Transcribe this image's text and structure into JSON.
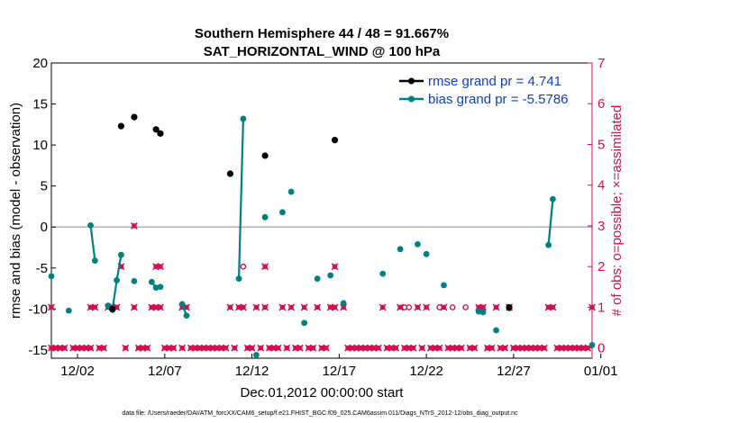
{
  "chart_data": {
    "type": "scatter",
    "title": [
      "Southern Hemisphere 44 / 48 = 91.667%",
      "SAT_HORIZONTAL_WIND @ 100 hPa"
    ],
    "xlabel": "Dec.01,2012 00:00:00 start",
    "ylabel_left": "rmse and bias (model - observation)",
    "ylabel_right": "# of obs: o=possible; ×=assimilated",
    "footer": "data file: /Users/raeder/DAI/ATM_forcXX/CAM6_setup/f.e21.FHIST_BGC.f09_025.CAM6assim.011/Diags_NTrS_2012-12/obs_diag_output.nc",
    "xlim": [
      0.5,
      31.5
    ],
    "ylim_left": [
      -16,
      20
    ],
    "ylim_right": [
      -0.25,
      7
    ],
    "x_ticks": [
      {
        "x": 2,
        "label": "12/02"
      },
      {
        "x": 7,
        "label": "12/07"
      },
      {
        "x": 12,
        "label": "12/12"
      },
      {
        "x": 17,
        "label": "12/17"
      },
      {
        "x": 22,
        "label": "12/22"
      },
      {
        "x": 27,
        "label": "12/27"
      },
      {
        "x": 32,
        "label": "01/01"
      }
    ],
    "y_ticks_left": [
      -15,
      -10,
      -5,
      0,
      5,
      10,
      15,
      20
    ],
    "y_ticks_right": [
      0,
      1,
      2,
      3,
      4,
      5,
      6,
      7
    ],
    "zero_line": 0,
    "legend": {
      "placement": "top-right",
      "entries": [
        {
          "key": "rmse",
          "label": "rmse grand pr = 4.741"
        },
        {
          "key": "bias",
          "label": "bias grand pr = -5.5786"
        }
      ]
    },
    "colors": {
      "rmse": "#000000",
      "bias": "#008080",
      "count": "#d01050",
      "legend_text": "#1040c0",
      "zero_line": "#b0b0b0"
    },
    "rmse_points": [
      [
        4.0,
        -10.0
      ],
      [
        4.5,
        12.3
      ],
      [
        5.25,
        13.4
      ],
      [
        6.5,
        11.9
      ],
      [
        6.75,
        11.4
      ],
      [
        10.75,
        6.5
      ],
      [
        12.75,
        8.7
      ],
      [
        16.75,
        10.6
      ],
      [
        26.75,
        -9.8
      ]
    ],
    "bias_segments": [
      [
        [
          0.5,
          -6.0
        ]
      ],
      [
        [
          1.5,
          -10.2
        ]
      ],
      [
        [
          2.75,
          0.2
        ],
        [
          3.0,
          -4.1
        ]
      ],
      [
        [
          3.75,
          -9.6
        ],
        [
          4.0,
          -10.1
        ],
        [
          4.25,
          -6.5
        ],
        [
          4.5,
          -3.4
        ]
      ],
      [
        [
          5.25,
          -6.6
        ]
      ],
      [
        [
          6.25,
          -6.7
        ],
        [
          6.5,
          -7.4
        ],
        [
          6.75,
          -7.3
        ]
      ],
      [
        [
          8.0,
          -9.4
        ],
        [
          8.25,
          -10.8
        ]
      ],
      [
        [
          10.75,
          6.5
        ]
      ],
      [
        [
          11.25,
          -6.3
        ],
        [
          11.5,
          13.2
        ]
      ],
      [
        [
          12.25,
          -15.6
        ]
      ],
      [
        [
          12.75,
          1.2
        ]
      ],
      [
        [
          13.75,
          1.8
        ]
      ],
      [
        [
          14.25,
          4.3
        ]
      ],
      [
        [
          15.0,
          -11.7
        ]
      ],
      [
        [
          15.75,
          -6.3
        ]
      ],
      [
        [
          16.5,
          -5.9
        ]
      ],
      [
        [
          17.25,
          -9.3
        ]
      ],
      [
        [
          19.5,
          -5.7
        ]
      ],
      [
        [
          20.5,
          -2.7
        ]
      ],
      [
        [
          21.5,
          -2.1
        ]
      ],
      [
        [
          22.0,
          -3.3
        ]
      ],
      [
        [
          23.0,
          -7.1
        ]
      ],
      [
        [
          25.0,
          -10.3
        ]
      ],
      [
        [
          25.25,
          -10.4
        ]
      ],
      [
        [
          26.0,
          -12.6
        ]
      ],
      [
        [
          26.75,
          -9.9
        ]
      ],
      [
        [
          29.0,
          -2.2
        ],
        [
          29.25,
          3.4
        ]
      ],
      [
        [
          31.5,
          -14.4
        ]
      ]
    ],
    "possible_counts": [
      [
        11.5,
        2
      ],
      [
        20.75,
        1
      ],
      [
        21.0,
        1
      ],
      [
        22.75,
        1
      ],
      [
        23.5,
        1
      ],
      [
        24.25,
        1
      ]
    ],
    "assimilated_counts": [
      [
        0.5,
        0
      ],
      [
        0.75,
        0
      ],
      [
        1.0,
        0
      ],
      [
        1.25,
        0
      ],
      [
        1.75,
        0
      ],
      [
        2.0,
        0
      ],
      [
        2.25,
        0
      ],
      [
        2.5,
        0
      ],
      [
        2.75,
        0
      ],
      [
        3.25,
        0
      ],
      [
        3.5,
        0
      ],
      [
        4.75,
        0
      ],
      [
        5.5,
        0
      ],
      [
        5.75,
        0
      ],
      [
        6.0,
        0
      ],
      [
        7.0,
        0
      ],
      [
        7.25,
        0
      ],
      [
        7.5,
        0
      ],
      [
        8.0,
        0
      ],
      [
        8.5,
        0
      ],
      [
        8.75,
        0
      ],
      [
        9.0,
        0
      ],
      [
        9.25,
        0
      ],
      [
        9.5,
        0
      ],
      [
        9.75,
        0
      ],
      [
        10.0,
        0
      ],
      [
        10.25,
        0
      ],
      [
        10.5,
        0
      ],
      [
        11.0,
        0
      ],
      [
        11.75,
        0
      ],
      [
        12.0,
        0
      ],
      [
        12.5,
        0
      ],
      [
        13.0,
        0
      ],
      [
        13.25,
        0
      ],
      [
        13.5,
        0
      ],
      [
        14.0,
        0
      ],
      [
        14.5,
        0
      ],
      [
        14.75,
        0
      ],
      [
        15.25,
        0
      ],
      [
        15.5,
        0
      ],
      [
        16.0,
        0
      ],
      [
        16.25,
        0
      ],
      [
        17.5,
        0
      ],
      [
        17.75,
        0
      ],
      [
        18.0,
        0
      ],
      [
        18.25,
        0
      ],
      [
        18.5,
        0
      ],
      [
        18.75,
        0
      ],
      [
        19.0,
        0
      ],
      [
        19.25,
        0
      ],
      [
        19.75,
        0
      ],
      [
        20.0,
        0
      ],
      [
        20.25,
        0
      ],
      [
        20.75,
        0
      ],
      [
        21.0,
        0
      ],
      [
        21.25,
        0
      ],
      [
        21.75,
        0
      ],
      [
        22.25,
        0
      ],
      [
        22.5,
        0
      ],
      [
        22.75,
        0
      ],
      [
        23.25,
        0
      ],
      [
        23.5,
        0
      ],
      [
        23.75,
        0
      ],
      [
        24.0,
        0
      ],
      [
        24.5,
        0
      ],
      [
        24.75,
        0
      ],
      [
        25.5,
        0
      ],
      [
        25.75,
        0
      ],
      [
        26.25,
        0
      ],
      [
        26.5,
        0
      ],
      [
        27.0,
        0
      ],
      [
        27.25,
        0
      ],
      [
        27.5,
        0
      ],
      [
        27.75,
        0
      ],
      [
        28.0,
        0
      ],
      [
        28.25,
        0
      ],
      [
        28.5,
        0
      ],
      [
        28.75,
        0
      ],
      [
        29.5,
        0
      ],
      [
        29.75,
        0
      ],
      [
        30.0,
        0
      ],
      [
        30.25,
        0
      ],
      [
        30.5,
        0
      ],
      [
        30.75,
        0
      ],
      [
        31.0,
        0
      ],
      [
        31.25,
        0
      ],
      [
        0.5,
        1
      ],
      [
        2.75,
        1
      ],
      [
        3.0,
        1
      ],
      [
        3.75,
        1
      ],
      [
        4.0,
        1
      ],
      [
        4.25,
        1
      ],
      [
        5.25,
        1
      ],
      [
        6.25,
        1
      ],
      [
        6.5,
        1
      ],
      [
        6.75,
        1
      ],
      [
        8.0,
        1
      ],
      [
        8.25,
        1
      ],
      [
        10.75,
        1
      ],
      [
        11.25,
        1
      ],
      [
        11.5,
        1
      ],
      [
        12.25,
        1
      ],
      [
        12.75,
        1
      ],
      [
        13.75,
        1
      ],
      [
        14.25,
        1
      ],
      [
        15.0,
        1
      ],
      [
        15.75,
        1
      ],
      [
        16.5,
        1
      ],
      [
        16.75,
        1
      ],
      [
        17.25,
        1
      ],
      [
        19.5,
        1
      ],
      [
        20.5,
        1
      ],
      [
        21.5,
        1
      ],
      [
        22.0,
        1
      ],
      [
        23.0,
        1
      ],
      [
        25.0,
        1
      ],
      [
        25.25,
        1
      ],
      [
        26.0,
        1
      ],
      [
        26.75,
        1
      ],
      [
        29.0,
        1
      ],
      [
        29.25,
        1
      ],
      [
        31.5,
        1
      ],
      [
        4.5,
        2
      ],
      [
        6.5,
        2
      ],
      [
        6.75,
        2
      ],
      [
        12.75,
        2
      ],
      [
        16.75,
        2
      ],
      [
        5.25,
        3
      ]
    ]
  }
}
